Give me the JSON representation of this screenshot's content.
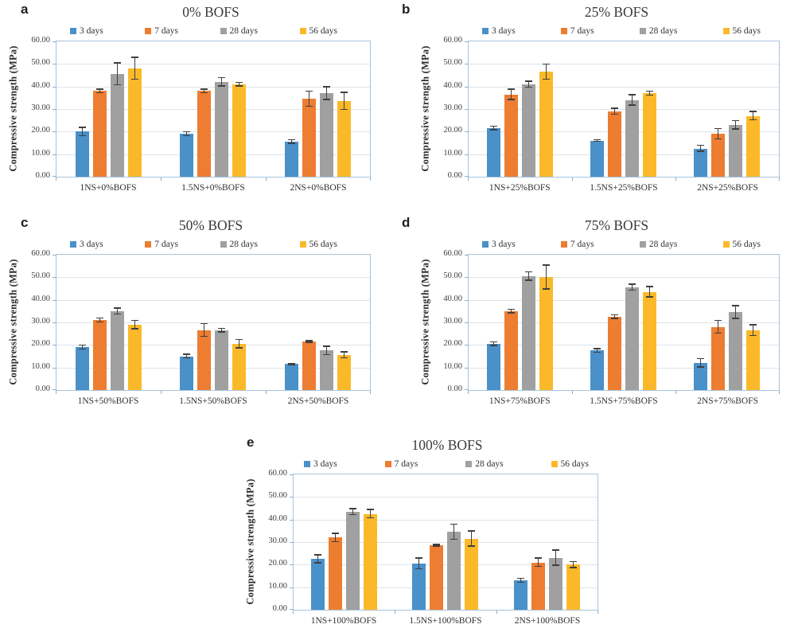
{
  "figure": {
    "background": "#ffffff",
    "panel_letters": [
      "a",
      "b",
      "c",
      "d",
      "e"
    ]
  },
  "colors": {
    "series_blue": "#4a90c9",
    "series_orange": "#ed7d31",
    "series_gray": "#a0a0a0",
    "series_yellow": "#fbb929",
    "plot_border": "#a6c4dd",
    "gridline": "#dde4ec",
    "error_bar": "#3f3f3f"
  },
  "chart_data": [
    {
      "id": "a",
      "panel_label": "a",
      "type": "bar",
      "title": "0% BOFS",
      "ylabel": "Compressive strength (MPa)",
      "ylim": [
        0,
        60
      ],
      "ytick_labels": [
        "0.00",
        "10.00",
        "20.00",
        "30.00",
        "40.00",
        "50.00",
        "60.00"
      ],
      "grid": true,
      "legend_position": "top",
      "error_bars": true,
      "categories": [
        "1NS+0%BOFS",
        "1.5NS+0%BOFS",
        "2NS+0%BOFS"
      ],
      "series": [
        {
          "name": "3 days",
          "color": "#4a90c9",
          "values": [
            20.0,
            19.0,
            15.5
          ],
          "errors": [
            2.0,
            1.0,
            1.0
          ]
        },
        {
          "name": "7 days",
          "color": "#ed7d31",
          "values": [
            38.0,
            38.0,
            34.5
          ],
          "errors": [
            1.0,
            1.0,
            3.5
          ]
        },
        {
          "name": "28 days",
          "color": "#a0a0a0",
          "values": [
            45.5,
            42.0,
            37.0
          ],
          "errors": [
            5.0,
            2.0,
            3.0
          ]
        },
        {
          "name": "56 days",
          "color": "#fbb929",
          "values": [
            48.0,
            41.0,
            33.5
          ],
          "errors": [
            5.0,
            1.0,
            4.0
          ]
        }
      ]
    },
    {
      "id": "b",
      "panel_label": "b",
      "type": "bar",
      "title": "25% BOFS",
      "ylabel": "Compressive strength (MPa)",
      "ylim": [
        0,
        60
      ],
      "ytick_labels": [
        "0.00",
        "10.00",
        "20.00",
        "30.00",
        "40.00",
        "50.00",
        "60.00"
      ],
      "grid": true,
      "legend_position": "top",
      "error_bars": true,
      "categories": [
        "1NS+25%BOFS",
        "1.5NS+25%BOFS",
        "2NS+25%BOFS"
      ],
      "series": [
        {
          "name": "3 days",
          "color": "#4a90c9",
          "values": [
            21.5,
            16.0,
            12.5
          ],
          "errors": [
            1.0,
            0.5,
            1.5
          ]
        },
        {
          "name": "7 days",
          "color": "#ed7d31",
          "values": [
            36.5,
            29.0,
            19.0
          ],
          "errors": [
            2.5,
            1.5,
            2.5
          ]
        },
        {
          "name": "28 days",
          "color": "#a0a0a0",
          "values": [
            41.0,
            34.0,
            23.0
          ],
          "errors": [
            1.5,
            2.5,
            2.0
          ]
        },
        {
          "name": "56 days",
          "color": "#fbb929",
          "values": [
            46.5,
            37.0,
            27.0
          ],
          "errors": [
            3.5,
            1.0,
            2.0
          ]
        }
      ]
    },
    {
      "id": "c",
      "panel_label": "c",
      "type": "bar",
      "title": "50% BOFS",
      "ylabel": "Compressive strength (MPa)",
      "ylim": [
        0,
        60
      ],
      "ytick_labels": [
        "0.00",
        "10.00",
        "20.00",
        "30.00",
        "40.00",
        "50.00",
        "60.00"
      ],
      "grid": true,
      "legend_position": "top",
      "error_bars": true,
      "categories": [
        "1NS+50%BOFS",
        "1.5NS+50%BOFS",
        "2NS+50%BOFS"
      ],
      "series": [
        {
          "name": "3 days",
          "color": "#4a90c9",
          "values": [
            19.0,
            15.0,
            11.5
          ],
          "errors": [
            1.0,
            1.0,
            0.5
          ]
        },
        {
          "name": "7 days",
          "color": "#ed7d31",
          "values": [
            31.0,
            26.5,
            21.5
          ],
          "errors": [
            1.0,
            3.0,
            0.5
          ]
        },
        {
          "name": "28 days",
          "color": "#a0a0a0",
          "values": [
            35.0,
            26.5,
            17.5
          ],
          "errors": [
            1.5,
            1.0,
            2.0
          ]
        },
        {
          "name": "56 days",
          "color": "#fbb929",
          "values": [
            29.0,
            20.5,
            15.5
          ],
          "errors": [
            2.0,
            2.0,
            1.5
          ]
        }
      ]
    },
    {
      "id": "d",
      "panel_label": "d",
      "type": "bar",
      "title": "75% BOFS",
      "ylabel": "Compressive strength (MPa)",
      "ylim": [
        0,
        60
      ],
      "ytick_labels": [
        "0.00",
        "10.00",
        "20.00",
        "30.00",
        "40.00",
        "50.00",
        "60.00"
      ],
      "grid": true,
      "legend_position": "top",
      "error_bars": true,
      "categories": [
        "1NS+75%BOFS",
        "1.5NS+75%BOFS",
        "2NS+75%BOFS"
      ],
      "series": [
        {
          "name": "3 days",
          "color": "#4a90c9",
          "values": [
            20.5,
            17.5,
            12.0
          ],
          "errors": [
            1.0,
            1.0,
            2.0
          ]
        },
        {
          "name": "7 days",
          "color": "#ed7d31",
          "values": [
            35.0,
            32.5,
            28.0
          ],
          "errors": [
            1.0,
            1.0,
            3.0
          ]
        },
        {
          "name": "28 days",
          "color": "#a0a0a0",
          "values": [
            50.5,
            45.5,
            34.5
          ],
          "errors": [
            2.0,
            1.5,
            3.0
          ]
        },
        {
          "name": "56 days",
          "color": "#fbb929",
          "values": [
            50.0,
            43.5,
            26.5
          ],
          "errors": [
            5.5,
            2.5,
            2.5
          ]
        }
      ]
    },
    {
      "id": "e",
      "panel_label": "e",
      "type": "bar",
      "title": "100% BOFS",
      "ylabel": "Compressive strength (MPa)",
      "ylim": [
        0,
        60
      ],
      "ytick_labels": [
        "0.00",
        "10.00",
        "20.00",
        "30.00",
        "40.00",
        "50.00",
        "60.00"
      ],
      "grid": true,
      "legend_position": "top",
      "error_bars": true,
      "categories": [
        "1NS+100%BOFS",
        "1.5NS+100%BOFS",
        "2NS+100%BOFS"
      ],
      "series": [
        {
          "name": "3 days",
          "color": "#4a90c9",
          "values": [
            22.5,
            20.5,
            13.0
          ],
          "errors": [
            2.0,
            2.5,
            1.0
          ]
        },
        {
          "name": "7 days",
          "color": "#ed7d31",
          "values": [
            32.0,
            28.5,
            21.0
          ],
          "errors": [
            2.0,
            0.5,
            2.0
          ]
        },
        {
          "name": "28 days",
          "color": "#a0a0a0",
          "values": [
            43.5,
            34.5,
            23.0
          ],
          "errors": [
            1.5,
            3.5,
            3.5
          ]
        },
        {
          "name": "56 days",
          "color": "#fbb929",
          "values": [
            42.5,
            31.5,
            20.0
          ],
          "errors": [
            2.0,
            3.5,
            1.5
          ]
        }
      ]
    }
  ]
}
